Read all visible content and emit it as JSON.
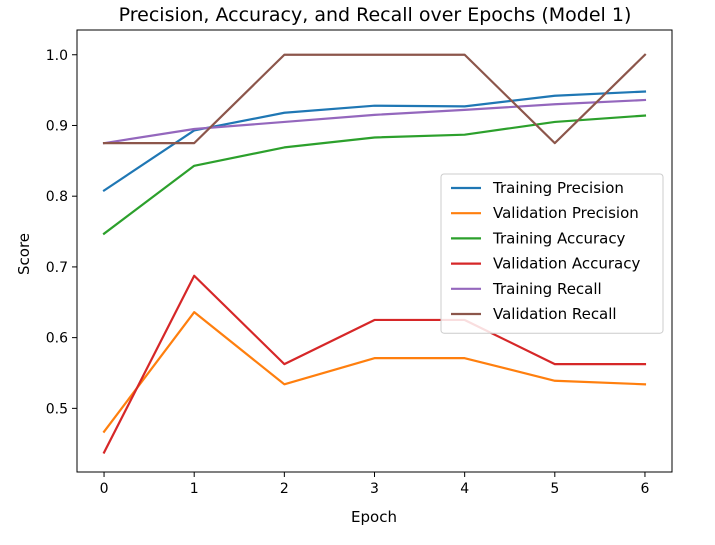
{
  "chart_data": {
    "type": "line",
    "title": "Precision, Accuracy, and Recall over Epochs (Model 1)",
    "xlabel": "Epoch",
    "ylabel": "Score",
    "xlim": [
      -0.3,
      6.3
    ],
    "ylim": [
      0.41,
      1.035
    ],
    "x": [
      0,
      1,
      2,
      3,
      4,
      5,
      6
    ],
    "x_ticks": [
      0,
      1,
      2,
      3,
      4,
      5,
      6
    ],
    "y_ticks": [
      0.5,
      0.6,
      0.7,
      0.8,
      0.9,
      1.0
    ],
    "y_tick_labels": [
      "0.5",
      "0.6",
      "0.7",
      "0.8",
      "0.9",
      "1.0"
    ],
    "grid": false,
    "legend_position": "center-right",
    "series": [
      {
        "name": "Training Precision",
        "color": "#1f77b4",
        "values": [
          0.808,
          0.893,
          0.918,
          0.928,
          0.927,
          0.942,
          0.948
        ]
      },
      {
        "name": "Validation Precision",
        "color": "#ff7f0e",
        "values": [
          0.467,
          0.636,
          0.534,
          0.571,
          0.571,
          0.539,
          0.534
        ]
      },
      {
        "name": "Training Accuracy",
        "color": "#2ca02c",
        "values": [
          0.747,
          0.843,
          0.869,
          0.883,
          0.887,
          0.905,
          0.914
        ]
      },
      {
        "name": "Validation Accuracy",
        "color": "#d62728",
        "values": [
          0.4375,
          0.6875,
          0.5625,
          0.625,
          0.625,
          0.5625,
          0.5625
        ]
      },
      {
        "name": "Training Recall",
        "color": "#9467bd",
        "values": [
          0.875,
          0.895,
          0.905,
          0.915,
          0.922,
          0.93,
          0.936
        ]
      },
      {
        "name": "Validation Recall",
        "color": "#8c564b",
        "values": [
          0.875,
          0.875,
          1.0,
          1.0,
          1.0,
          0.875,
          1.0
        ]
      }
    ]
  }
}
